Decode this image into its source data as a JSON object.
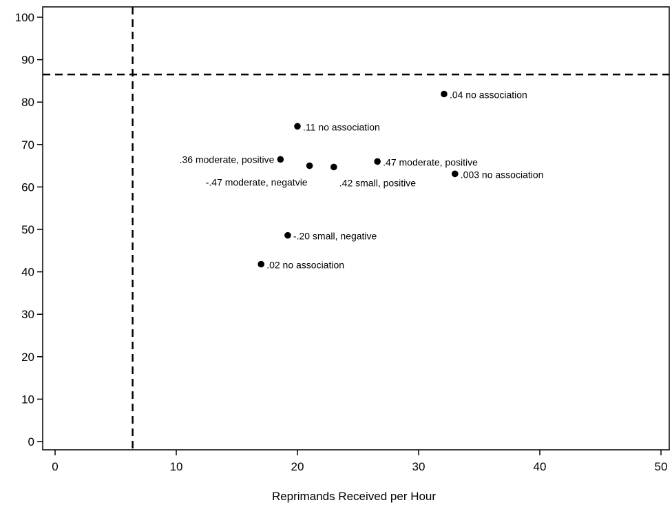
{
  "chart_data": {
    "type": "scatter",
    "title": "",
    "xlabel": "Reprimands Received per Hour",
    "ylabel": "",
    "xlim": [
      0,
      50
    ],
    "ylim": [
      0,
      100
    ],
    "xticks": [
      0,
      10,
      20,
      30,
      40,
      50
    ],
    "yticks": [
      0,
      10,
      20,
      30,
      40,
      50,
      60,
      70,
      80,
      90,
      100
    ],
    "grid": false,
    "legend": "none",
    "reference_lines": {
      "vertical_x": 6.4,
      "horizontal_y": 86.5,
      "style": "dashed"
    },
    "points": [
      {
        "x": 32.1,
        "y": 81.9,
        "label": ".04 no association",
        "label_pos": "right"
      },
      {
        "x": 20.0,
        "y": 74.3,
        "label": ".11 no association",
        "label_pos": "right"
      },
      {
        "x": 18.6,
        "y": 66.5,
        "label": ".36 moderate, positive",
        "label_pos": "left"
      },
      {
        "x": 21.0,
        "y": 65.0,
        "label": "-.47 moderate, negatvie",
        "label_pos": "below-left"
      },
      {
        "x": 23.0,
        "y": 64.7,
        "label": ".42 small, positive",
        "label_pos": "below-right"
      },
      {
        "x": 26.6,
        "y": 66.0,
        "label": ".47 moderate, positive",
        "label_pos": "right"
      },
      {
        "x": 33.0,
        "y": 63.1,
        "label": ".003 no association",
        "label_pos": "right"
      },
      {
        "x": 19.2,
        "y": 48.6,
        "label": "-.20 small, negative",
        "label_pos": "right"
      },
      {
        "x": 17.0,
        "y": 41.8,
        "label": ".02 no association",
        "label_pos": "right"
      }
    ],
    "colors": {
      "points": "#000000",
      "axes": "#000000",
      "reference_lines": "#000000"
    }
  }
}
